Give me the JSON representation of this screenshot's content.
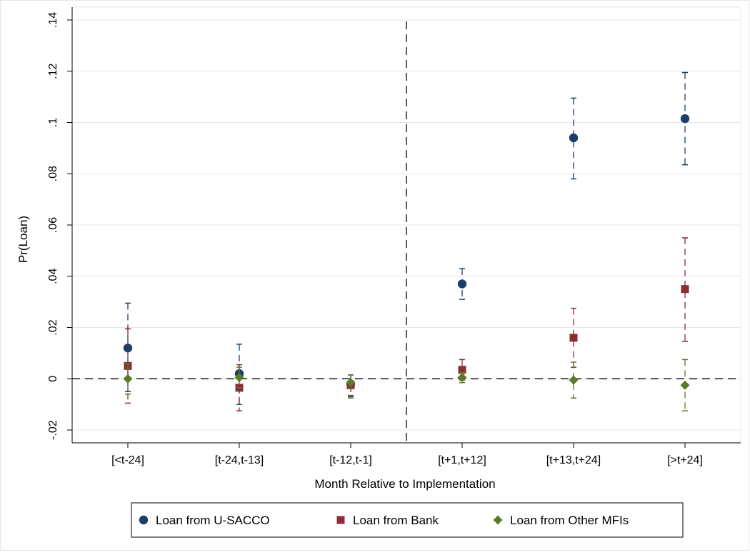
{
  "chart_data": {
    "type": "scatter",
    "xlabel": "Month Relative to Implementation",
    "ylabel": "Pr(Loan)",
    "categories": [
      "[<t-24]",
      "[t-24,t-13]",
      "[t-12,t-1]",
      "[t+1,t+12]",
      "[t+13,t+24]",
      "[>t+24]"
    ],
    "ylim": [
      -0.025,
      0.145
    ],
    "yticks": [
      -0.02,
      0,
      0.02,
      0.04,
      0.06,
      0.08,
      0.1,
      0.12,
      0.14
    ],
    "ytick_labels": [
      "-.02",
      "0",
      ".02",
      ".04",
      ".06",
      ".08",
      ".1",
      ".12",
      ".14"
    ],
    "grid": "horizontal",
    "reference_lines": {
      "horizontal_y": 0,
      "vertical_between": [
        "[t-12,t-1]",
        "[t+1,t+12]"
      ]
    },
    "legend_position": "bottom",
    "series": [
      {
        "name": "Loan from U-SACCO",
        "marker": "circle",
        "color": "#1b3f6b",
        "values": [
          0.012,
          0.002,
          -0.002,
          0.037,
          0.094,
          0.1015
        ],
        "ci_low": [
          -0.005,
          -0.01,
          -0.007,
          0.031,
          0.078,
          0.0835
        ],
        "ci_high": [
          0.0295,
          0.0135,
          0.0015,
          0.043,
          0.1095,
          0.1195
        ]
      },
      {
        "name": "Loan from Bank",
        "marker": "square",
        "color": "#8b2c35",
        "values": [
          0.005,
          -0.0035,
          -0.0025,
          0.0035,
          0.016,
          0.035
        ],
        "ci_low": [
          -0.0095,
          -0.0125,
          -0.0065,
          -0.0005,
          0.0045,
          0.0145
        ],
        "ci_high": [
          0.0195,
          0.0055,
          0.0015,
          0.0075,
          0.0275,
          0.055
        ]
      },
      {
        "name": "Loan from Other MFIs",
        "marker": "diamond",
        "color": "#5b7a2a",
        "values": [
          0.0,
          0.0005,
          -0.0015,
          0.0005,
          -0.0005,
          -0.0025
        ],
        "ci_low": [
          -0.006,
          -0.0035,
          -0.0075,
          -0.0015,
          -0.0075,
          -0.0125
        ],
        "ci_high": [
          0.006,
          0.0045,
          0.0015,
          0.0025,
          0.0065,
          0.0075
        ]
      }
    ]
  }
}
